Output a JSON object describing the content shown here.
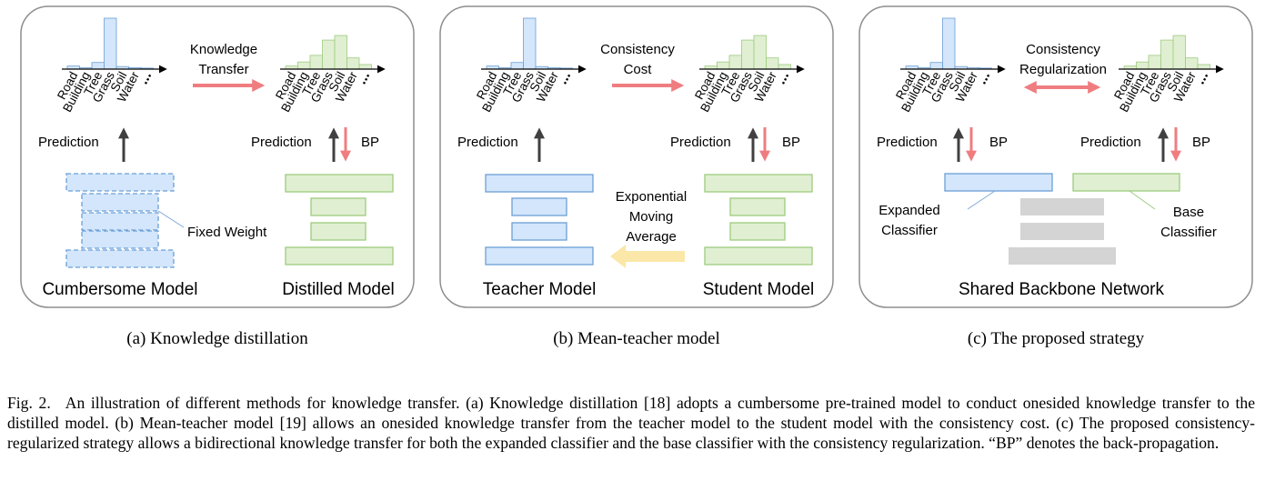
{
  "categories": [
    "Road",
    "Building",
    "Tree",
    "Grass",
    "Soil",
    "Water",
    "..."
  ],
  "panels": [
    {
      "transfer_label": [
        "Knowledge",
        "Transfer"
      ],
      "left_pred": "Prediction",
      "right_pred": "Prediction",
      "right_bp": "BP",
      "extra_label": "Fixed Weight",
      "left_model": "Cumbersome Model",
      "right_model": "Distilled Model",
      "subcaption": "(a) Knowledge distillation"
    },
    {
      "transfer_label": [
        "Consistency",
        "Cost"
      ],
      "left_pred": "Prediction",
      "right_pred": "Prediction",
      "right_bp": "BP",
      "ema_label": [
        "Exponential",
        "Moving",
        "Average"
      ],
      "left_model": "Teacher Model",
      "right_model": "Student Model",
      "subcaption": "(b) Mean-teacher model"
    },
    {
      "transfer_label": [
        "Consistency",
        "Regularization"
      ],
      "left_pred": "Prediction",
      "left_bp": "BP",
      "right_pred": "Prediction",
      "right_bp": "BP",
      "expanded_label": [
        "Expanded",
        "Classifier"
      ],
      "base_label": [
        "Base",
        "Classifier"
      ],
      "model": "Shared Backbone Network",
      "subcaption": "(c) The proposed strategy"
    }
  ],
  "histograms": {
    "peaked": [
      0.06,
      0.03,
      0.13,
      1.0,
      0.05,
      0.03,
      0.02
    ],
    "smooth": [
      0.06,
      0.14,
      0.27,
      0.57,
      0.66,
      0.22,
      0.09
    ]
  },
  "colors": {
    "blue_fill": "#d3e6fb",
    "blue_stroke": "#6b9fd6",
    "green_fill": "#e0efd2",
    "green_stroke": "#9dcb7e",
    "gray_fill": "#d4d4d4",
    "red_arrow": "#ef7d80",
    "yellow_arrow": "#fbe7a8",
    "panel_border": "#8e8e8e"
  },
  "caption": {
    "label": "Fig. 2.",
    "text": "An illustration of different methods for knowledge transfer. (a) Knowledge distillation [18] adopts a cumbersome pre-trained model to conduct onesided knowledge transfer to the distilled model. (b) Mean-teacher model [19] allows an onesided knowledge transfer from the teacher model to the student model with the consistency cost. (c) The proposed consistency-regularized strategy allows a bidirectional knowledge transfer for both the expanded classifier and the base classifier with the consistency regularization. “BP” denotes the back-propagation."
  }
}
